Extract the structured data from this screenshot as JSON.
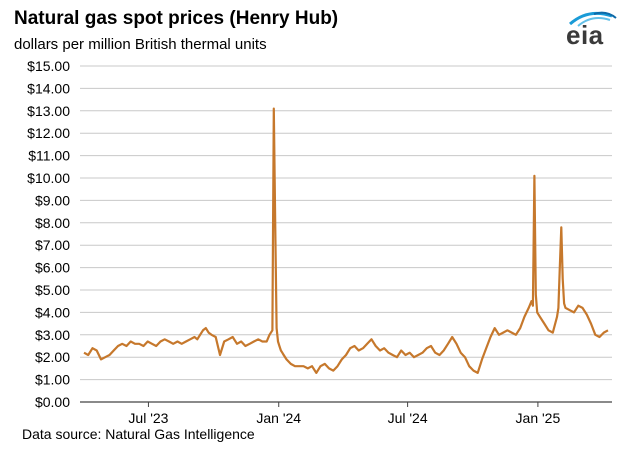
{
  "header": {
    "title": "Natural gas spot prices (Henry Hub)",
    "subtitle": "dollars per million British thermal units"
  },
  "footer": {
    "source": "Data source: Natural Gas Intelligence"
  },
  "logo": {
    "text": "eia",
    "colors": [
      "#1a9bd7",
      "#0e6aa8",
      "#62c0e8"
    ]
  },
  "chart_data": {
    "type": "line",
    "title": "Natural gas spot prices (Henry Hub)",
    "ylabel": "dollars per million British thermal units",
    "xlabel": "",
    "ylim": [
      0,
      15
    ],
    "y_tick_labels": [
      "$0.00",
      "$1.00",
      "$2.00",
      "$3.00",
      "$4.00",
      "$5.00",
      "$6.00",
      "$7.00",
      "$8.00",
      "$9.00",
      "$10.00",
      "$11.00",
      "$12.00",
      "$13.00",
      "$14.00",
      "$15.00"
    ],
    "y_tick_values": [
      0,
      1,
      2,
      3,
      4,
      5,
      6,
      7,
      8,
      9,
      10,
      11,
      12,
      13,
      14,
      15
    ],
    "x_tick_labels": [
      "Jul '23",
      "Jan '24",
      "Jul '24",
      "Jan '25"
    ],
    "x_tick_days": [
      91,
      275,
      457,
      641
    ],
    "x_range_days": [
      0,
      740
    ],
    "grid": true,
    "line_color": "#c6782c",
    "series": [
      {
        "name": "Henry Hub spot price",
        "x": [
          0,
          6,
          12,
          18,
          24,
          30,
          36,
          42,
          48,
          54,
          60,
          66,
          72,
          78,
          84,
          90,
          96,
          102,
          108,
          114,
          120,
          126,
          132,
          138,
          144,
          150,
          156,
          160,
          164,
          168,
          172,
          176,
          180,
          186,
          192,
          198,
          204,
          210,
          216,
          222,
          228,
          234,
          240,
          246,
          252,
          258,
          262,
          266,
          268,
          270,
          272,
          274,
          276,
          278,
          280,
          282,
          286,
          292,
          298,
          304,
          310,
          316,
          322,
          328,
          334,
          340,
          346,
          352,
          358,
          364,
          370,
          376,
          382,
          388,
          394,
          400,
          406,
          412,
          418,
          424,
          430,
          436,
          442,
          448,
          454,
          460,
          466,
          472,
          478,
          484,
          490,
          496,
          502,
          508,
          514,
          520,
          526,
          532,
          538,
          544,
          550,
          556,
          562,
          568,
          574,
          580,
          586,
          592,
          598,
          604,
          610,
          616,
          622,
          628,
          632,
          634,
          636,
          638,
          640,
          644,
          650,
          656,
          662,
          668,
          670,
          672,
          674,
          676,
          678,
          680,
          686,
          692,
          698,
          704,
          710,
          716,
          722,
          728,
          734,
          740
        ],
        "values": [
          2.2,
          2.1,
          2.4,
          2.3,
          1.9,
          2.0,
          2.1,
          2.3,
          2.5,
          2.6,
          2.5,
          2.7,
          2.6,
          2.6,
          2.5,
          2.7,
          2.6,
          2.5,
          2.7,
          2.8,
          2.7,
          2.6,
          2.7,
          2.6,
          2.7,
          2.8,
          2.9,
          2.8,
          3.0,
          3.2,
          3.3,
          3.1,
          3.0,
          2.9,
          2.1,
          2.7,
          2.8,
          2.9,
          2.6,
          2.7,
          2.5,
          2.6,
          2.7,
          2.8,
          2.7,
          2.7,
          3.0,
          3.2,
          13.1,
          8.0,
          3.3,
          2.7,
          2.5,
          2.3,
          2.2,
          2.1,
          1.9,
          1.7,
          1.6,
          1.6,
          1.6,
          1.5,
          1.6,
          1.3,
          1.6,
          1.7,
          1.5,
          1.4,
          1.6,
          1.9,
          2.1,
          2.4,
          2.5,
          2.3,
          2.4,
          2.6,
          2.8,
          2.5,
          2.3,
          2.4,
          2.2,
          2.1,
          2.0,
          2.3,
          2.1,
          2.2,
          2.0,
          2.1,
          2.2,
          2.4,
          2.5,
          2.2,
          2.1,
          2.3,
          2.6,
          2.9,
          2.6,
          2.2,
          2.0,
          1.6,
          1.4,
          1.3,
          1.9,
          2.4,
          2.9,
          3.3,
          3.0,
          3.1,
          3.2,
          3.1,
          3.0,
          3.3,
          3.8,
          4.2,
          4.5,
          4.3,
          10.1,
          4.8,
          4.0,
          3.8,
          3.5,
          3.2,
          3.1,
          3.8,
          4.2,
          6.0,
          7.8,
          5.5,
          4.4,
          4.2,
          4.1,
          4.0,
          4.3,
          4.2,
          3.9,
          3.5,
          3.0,
          2.9,
          3.1,
          3.2
        ]
      }
    ]
  }
}
